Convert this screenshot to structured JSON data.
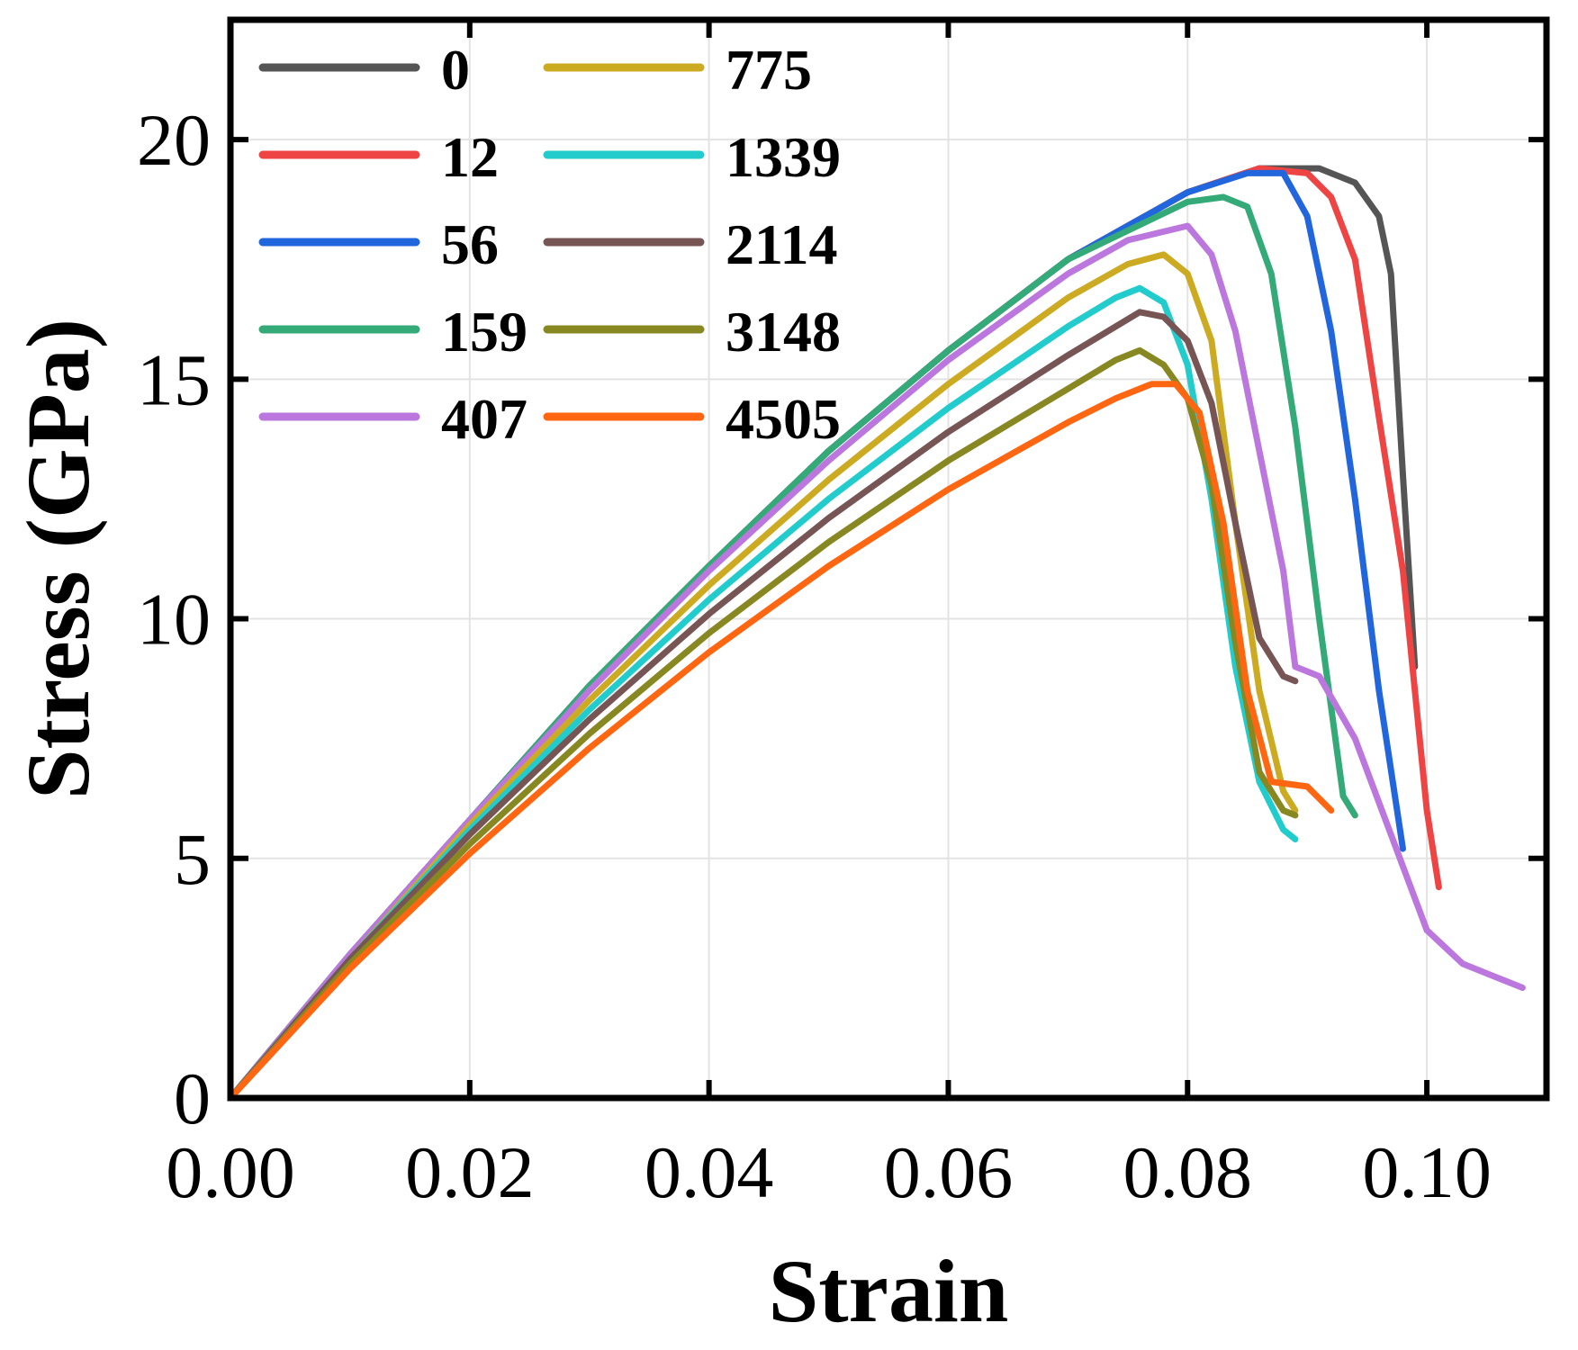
{
  "chart_data": {
    "type": "line",
    "xlabel": "Strain",
    "ylabel": "Stress (GPa)",
    "xlim": [
      0,
      0.11
    ],
    "ylim": [
      0,
      22.5
    ],
    "xticks": [
      0,
      0.02,
      0.04,
      0.06,
      0.08,
      0.1
    ],
    "xtick_labels": [
      "0.00",
      "0.02",
      "0.04",
      "0.06",
      "0.08",
      "0.10"
    ],
    "yticks": [
      0,
      5,
      10,
      15,
      20
    ],
    "ytick_labels": [
      "0",
      "5",
      "10",
      "15",
      "20"
    ],
    "grid": true,
    "legend_position": "top-left",
    "series": [
      {
        "name": "0",
        "color": "#555555",
        "x": [
          0,
          0.01,
          0.02,
          0.03,
          0.04,
          0.05,
          0.06,
          0.07,
          0.08,
          0.086,
          0.091,
          0.094,
          0.096,
          0.097,
          0.098,
          0.099
        ],
        "y": [
          0,
          3.0,
          5.8,
          8.6,
          11.1,
          13.5,
          15.6,
          17.5,
          18.9,
          19.4,
          19.4,
          19.1,
          18.4,
          17.2,
          13.0,
          9.0
        ]
      },
      {
        "name": "12",
        "color": "#ee4444",
        "x": [
          0,
          0.01,
          0.02,
          0.03,
          0.04,
          0.05,
          0.06,
          0.07,
          0.08,
          0.086,
          0.09,
          0.092,
          0.094,
          0.096,
          0.098,
          0.1,
          0.101
        ],
        "y": [
          0,
          3.0,
          5.8,
          8.6,
          11.1,
          13.5,
          15.6,
          17.5,
          18.9,
          19.4,
          19.3,
          18.8,
          17.5,
          14.2,
          11.0,
          6.0,
          4.4
        ]
      },
      {
        "name": "56",
        "color": "#2266dd",
        "x": [
          0,
          0.01,
          0.02,
          0.03,
          0.04,
          0.05,
          0.06,
          0.07,
          0.08,
          0.085,
          0.088,
          0.09,
          0.092,
          0.094,
          0.096,
          0.098
        ],
        "y": [
          0,
          3.0,
          5.8,
          8.6,
          11.1,
          13.5,
          15.6,
          17.5,
          18.9,
          19.3,
          19.3,
          18.4,
          16.0,
          12.5,
          8.5,
          5.2
        ]
      },
      {
        "name": "159",
        "color": "#33aa77",
        "x": [
          0,
          0.01,
          0.02,
          0.03,
          0.04,
          0.05,
          0.06,
          0.07,
          0.08,
          0.083,
          0.085,
          0.087,
          0.089,
          0.091,
          0.093,
          0.094
        ],
        "y": [
          0,
          3.0,
          5.8,
          8.6,
          11.1,
          13.5,
          15.6,
          17.5,
          18.7,
          18.8,
          18.6,
          17.2,
          14.0,
          10.0,
          6.3,
          5.9
        ]
      },
      {
        "name": "407",
        "color": "#bb77dd",
        "x": [
          0,
          0.01,
          0.02,
          0.03,
          0.04,
          0.05,
          0.06,
          0.07,
          0.075,
          0.08,
          0.082,
          0.084,
          0.086,
          0.088,
          0.089,
          0.091,
          0.094,
          0.097,
          0.1,
          0.103,
          0.106,
          0.108
        ],
        "y": [
          0,
          3.0,
          5.8,
          8.5,
          11.0,
          13.3,
          15.4,
          17.2,
          17.9,
          18.2,
          17.6,
          16.0,
          13.5,
          11.0,
          9.0,
          8.8,
          7.5,
          5.5,
          3.5,
          2.8,
          2.5,
          2.3
        ]
      },
      {
        "name": "775",
        "color": "#ccaa22",
        "x": [
          0,
          0.01,
          0.02,
          0.03,
          0.04,
          0.05,
          0.06,
          0.07,
          0.075,
          0.078,
          0.08,
          0.082,
          0.084,
          0.086,
          0.088,
          0.089
        ],
        "y": [
          0,
          2.9,
          5.7,
          8.3,
          10.7,
          12.9,
          14.9,
          16.7,
          17.4,
          17.6,
          17.2,
          15.8,
          12.0,
          8.5,
          6.4,
          6.0
        ]
      },
      {
        "name": "1339",
        "color": "#22cccc",
        "x": [
          0,
          0.01,
          0.02,
          0.03,
          0.04,
          0.05,
          0.06,
          0.07,
          0.074,
          0.076,
          0.078,
          0.08,
          0.082,
          0.084,
          0.086,
          0.088,
          0.089
        ],
        "y": [
          0,
          2.9,
          5.6,
          8.1,
          10.4,
          12.5,
          14.4,
          16.1,
          16.7,
          16.9,
          16.6,
          15.3,
          12.5,
          9.0,
          6.6,
          5.6,
          5.4
        ]
      },
      {
        "name": "2114",
        "color": "#775555",
        "x": [
          0,
          0.01,
          0.02,
          0.03,
          0.04,
          0.05,
          0.06,
          0.07,
          0.074,
          0.076,
          0.078,
          0.08,
          0.082,
          0.084,
          0.086,
          0.088,
          0.089
        ],
        "y": [
          0,
          2.9,
          5.5,
          7.9,
          10.1,
          12.1,
          13.9,
          15.5,
          16.1,
          16.4,
          16.3,
          15.8,
          14.5,
          12.0,
          9.6,
          8.8,
          8.7
        ]
      },
      {
        "name": "3148",
        "color": "#888822",
        "x": [
          0,
          0.01,
          0.02,
          0.03,
          0.04,
          0.05,
          0.06,
          0.07,
          0.074,
          0.076,
          0.078,
          0.08,
          0.082,
          0.084,
          0.086,
          0.088,
          0.089
        ],
        "y": [
          0,
          2.8,
          5.3,
          7.6,
          9.7,
          11.6,
          13.3,
          14.8,
          15.4,
          15.6,
          15.3,
          14.6,
          12.8,
          9.5,
          6.8,
          6.0,
          5.9
        ]
      },
      {
        "name": "4505",
        "color": "#ff6611",
        "x": [
          0,
          0.01,
          0.02,
          0.03,
          0.04,
          0.05,
          0.06,
          0.07,
          0.074,
          0.077,
          0.079,
          0.081,
          0.083,
          0.085,
          0.087,
          0.09,
          0.092
        ],
        "y": [
          0,
          2.7,
          5.1,
          7.3,
          9.3,
          11.1,
          12.7,
          14.1,
          14.6,
          14.9,
          14.9,
          14.3,
          12.0,
          8.5,
          6.6,
          6.5,
          6.0
        ]
      }
    ]
  }
}
